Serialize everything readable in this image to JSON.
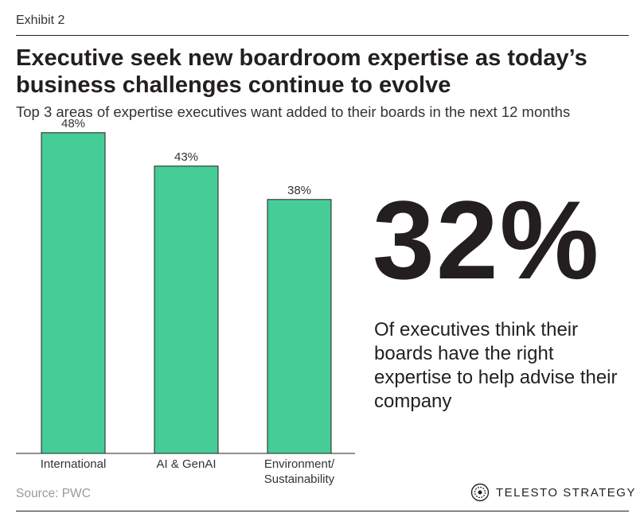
{
  "exhibit_label": "Exhibit 2",
  "title": "Executive seek new boardroom expertise as today’s business challenges continue to evolve",
  "subtitle": "Top 3 areas of expertise executives want added to their boards in the next 12 months",
  "chart_data": {
    "type": "bar",
    "categories": [
      [
        "International"
      ],
      [
        "AI & GenAI"
      ],
      [
        "Environment/",
        "Sustainability"
      ]
    ],
    "values": [
      48,
      43,
      38
    ],
    "value_labels": [
      "48%",
      "43%",
      "38%"
    ],
    "ylim": [
      0,
      50
    ],
    "grid": false,
    "bar_color": "#45cc97"
  },
  "callout": {
    "value": "32%",
    "text": "Of executives think their boards have the right expertise to help advise their company"
  },
  "source": "Source: PWC",
  "brand": {
    "name": "TELESTO STRATEGY",
    "logo_icon": "telesto-logo-icon"
  }
}
